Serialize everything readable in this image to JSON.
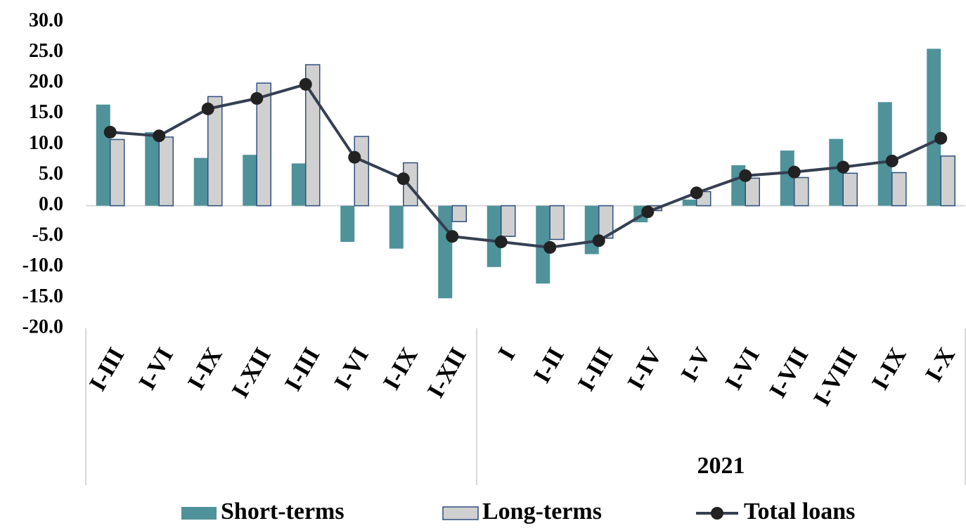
{
  "chart_data": {
    "type": "bar-line",
    "groups": [
      {
        "categories": [
          "I-III",
          "I-VI",
          "I-IX",
          "I-XII",
          "I-III",
          "I-VI",
          "I-IX",
          "I-XII"
        ]
      },
      {
        "label": "2021",
        "categories": [
          "I",
          "I-II",
          "I-III",
          "I-IV",
          "I-V",
          "I-VI",
          "I-VII",
          "I-VIII",
          "I-IX",
          "I-X"
        ]
      }
    ],
    "series": [
      {
        "name": "Short-terms",
        "kind": "bar",
        "color": "#4f9299",
        "values": [
          16.5,
          12.0,
          7.8,
          8.3,
          6.9,
          -5.9,
          -7.0,
          -15.1,
          -10.0,
          -12.7,
          -7.9,
          -2.7,
          1.0,
          6.6,
          9.0,
          10.9,
          16.9,
          25.6
        ]
      },
      {
        "name": "Long-terms",
        "kind": "bar",
        "color": "#d0d0d0",
        "edge": "#2f4f7f",
        "values": [
          10.8,
          11.2,
          17.8,
          20.0,
          23.0,
          11.3,
          7.0,
          -2.6,
          -5.0,
          -5.5,
          -5.3,
          -0.8,
          2.3,
          4.5,
          4.6,
          5.3,
          5.4,
          8.1
        ]
      },
      {
        "name": "Total loans",
        "kind": "line",
        "color": "#353f52",
        "marker": "#222222",
        "values": [
          12.0,
          11.4,
          15.8,
          17.5,
          19.8,
          7.9,
          4.4,
          -5.0,
          -5.9,
          -6.8,
          -5.7,
          -1.0,
          2.1,
          4.9,
          5.5,
          6.3,
          7.3,
          11.0
        ]
      }
    ],
    "ylim": [
      -20,
      30
    ],
    "yticks": [
      {
        "value": -20,
        "label": "-20.0"
      },
      {
        "value": -15,
        "label": "-15.0"
      },
      {
        "value": -10,
        "label": "-10.0"
      },
      {
        "value": -5,
        "label": "-5.0"
      },
      {
        "value": 0,
        "label": "0.0"
      },
      {
        "value": 5,
        "label": "5.0"
      },
      {
        "value": 10,
        "label": "10.0"
      },
      {
        "value": 15,
        "label": "15.0"
      },
      {
        "value": 20,
        "label": "20.0"
      },
      {
        "value": 25,
        "label": "25.0"
      },
      {
        "value": 30,
        "label": "30.0"
      }
    ],
    "legend": "bottom"
  }
}
